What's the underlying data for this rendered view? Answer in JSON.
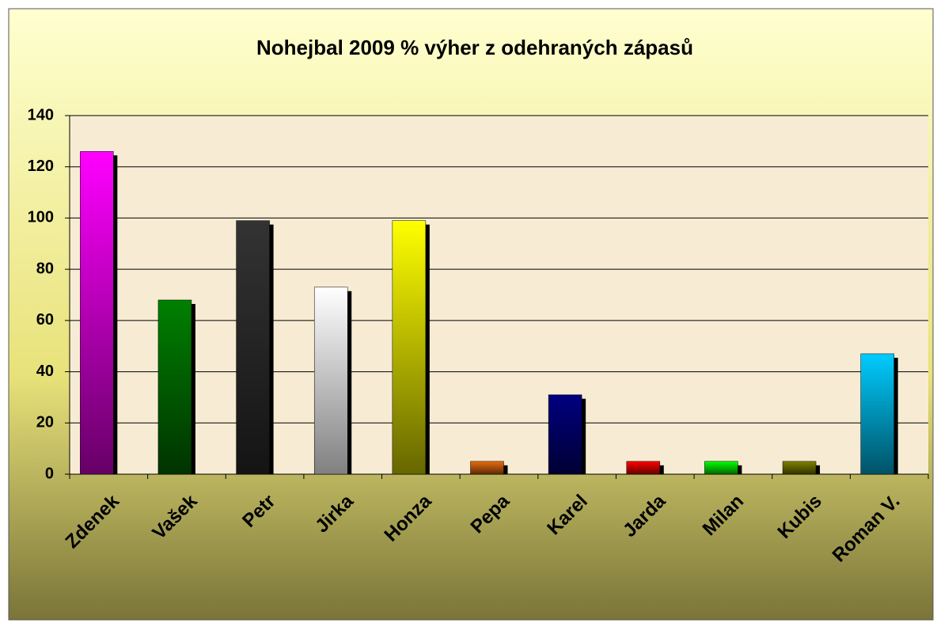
{
  "chart_data": {
    "type": "bar",
    "title": "Nohejbal 2009 %  výher z odehraných zápasů",
    "categories": [
      "Zdenek",
      "Vašek",
      "Petr",
      "Jirka",
      "Honza",
      "Pepa",
      "Karel",
      "Jarda",
      "Milan",
      "Kubis",
      "Roman V."
    ],
    "values": [
      126,
      68,
      99,
      73,
      99,
      5,
      31,
      5,
      5,
      5,
      47
    ],
    "colors": [
      "#ff00ff",
      "#008000",
      "#333333",
      "#ffffff",
      "#ffff00",
      "#e86a10",
      "#000080",
      "#ff0000",
      "#00ff00",
      "#808000",
      "#00ccff"
    ],
    "ylim": [
      0,
      140
    ],
    "yticks": [
      0,
      20,
      40,
      60,
      80,
      100,
      120,
      140
    ],
    "grid": true
  }
}
